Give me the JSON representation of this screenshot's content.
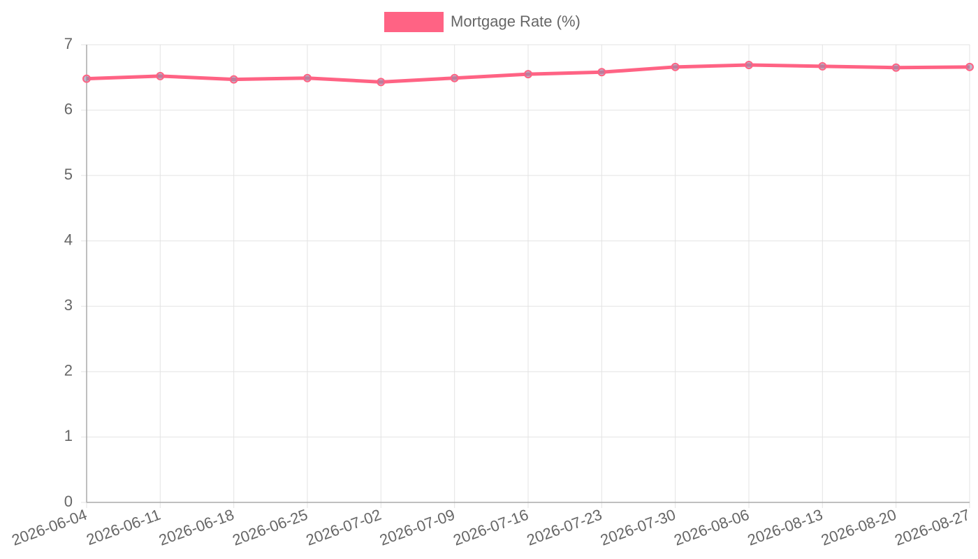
{
  "chart_data": {
    "type": "line",
    "categories": [
      "2026-06-04",
      "2026-06-11",
      "2026-06-18",
      "2026-06-25",
      "2026-07-02",
      "2026-07-09",
      "2026-07-16",
      "2026-07-23",
      "2026-07-30",
      "2026-08-06",
      "2026-08-13",
      "2026-08-20",
      "2026-08-27"
    ],
    "series": [
      {
        "name": "Mortgage Rate (%)",
        "color": "#ff6384",
        "values": [
          6.48,
          6.52,
          6.47,
          6.49,
          6.43,
          6.49,
          6.55,
          6.58,
          6.66,
          6.69,
          6.67,
          6.65,
          6.66
        ]
      }
    ],
    "ylim": [
      0,
      7
    ],
    "yticks": [
      0,
      1,
      2,
      3,
      4,
      5,
      6,
      7
    ],
    "grid": true,
    "legend": "top"
  }
}
